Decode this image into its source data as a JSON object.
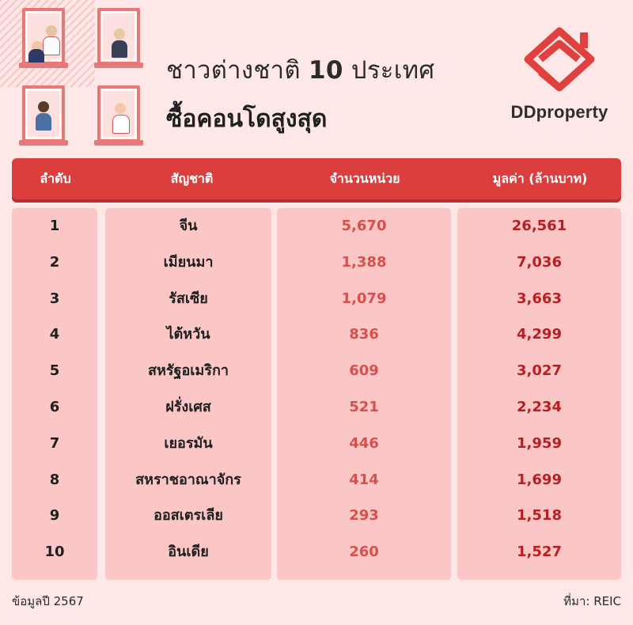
{
  "title": {
    "line1": "ชาวต่างชาติ 10 ประเทศ",
    "line2": "ซื้อคอนโดสูงสุด"
  },
  "brand": "DDproperty",
  "colors": {
    "header": "#dc3d3d",
    "column": "#fbc7c6",
    "background": "#fde8e7",
    "units_text": "#d8504c",
    "value_text": "#b81f22"
  },
  "chart_data": {
    "type": "table",
    "columns": [
      "ลำดับ",
      "สัญชาติ",
      "จำนวนหน่วย",
      "มูลค่า (ล้านบาท)"
    ],
    "rows": [
      {
        "rank": "1",
        "country": "จีน",
        "units": "5,670",
        "value": "26,561"
      },
      {
        "rank": "2",
        "country": "เมียนมา",
        "units": "1,388",
        "value": "7,036"
      },
      {
        "rank": "3",
        "country": "รัสเซีย",
        "units": "1,079",
        "value": "3,663"
      },
      {
        "rank": "4",
        "country": "ไต้หวัน",
        "units": "836",
        "value": "4,299"
      },
      {
        "rank": "5",
        "country": "สหรัฐอเมริกา",
        "units": "609",
        "value": "3,027"
      },
      {
        "rank": "6",
        "country": "ฝรั่งเศส",
        "units": "521",
        "value": "2,234"
      },
      {
        "rank": "7",
        "country": "เยอรมัน",
        "units": "446",
        "value": "1,959"
      },
      {
        "rank": "8",
        "country": "สหราชอาณาจักร",
        "units": "414",
        "value": "1,699"
      },
      {
        "rank": "9",
        "country": "ออสเตรเลีย",
        "units": "293",
        "value": "1,518"
      },
      {
        "rank": "10",
        "country": "อินเดีย",
        "units": "260",
        "value": "1,527"
      }
    ]
  },
  "footer": {
    "data_year": "ข้อมูลปี 2567",
    "source": "ที่มา: REIC"
  }
}
